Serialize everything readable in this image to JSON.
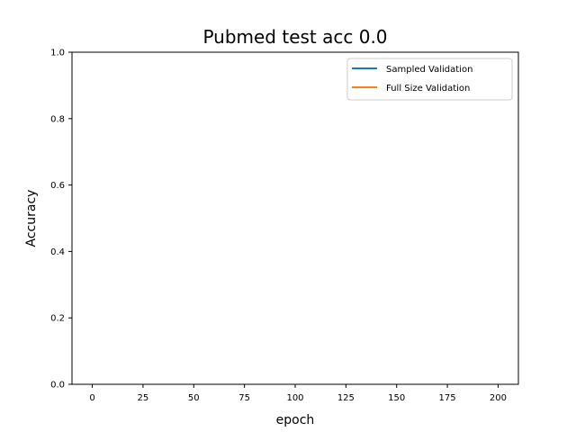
{
  "chart_data": {
    "type": "line",
    "title": "Pubmed test acc 0.0",
    "xlabel": "epoch",
    "ylabel": "Accuracy",
    "xlim": [
      -10,
      210
    ],
    "ylim": [
      0.0,
      1.0
    ],
    "xticks": [
      "0",
      "25",
      "50",
      "75",
      "100",
      "125",
      "150",
      "175",
      "200"
    ],
    "yticks": [
      "0.0",
      "0.2",
      "0.4",
      "0.6",
      "0.8",
      "1.0"
    ],
    "grid": false,
    "legend_position": "upper right",
    "series": [
      {
        "name": "Sampled Validation",
        "color": "#1f77b4",
        "x": [],
        "y": []
      },
      {
        "name": "Full Size Validation",
        "color": "#ff7f0e",
        "x": [],
        "y": []
      }
    ]
  }
}
